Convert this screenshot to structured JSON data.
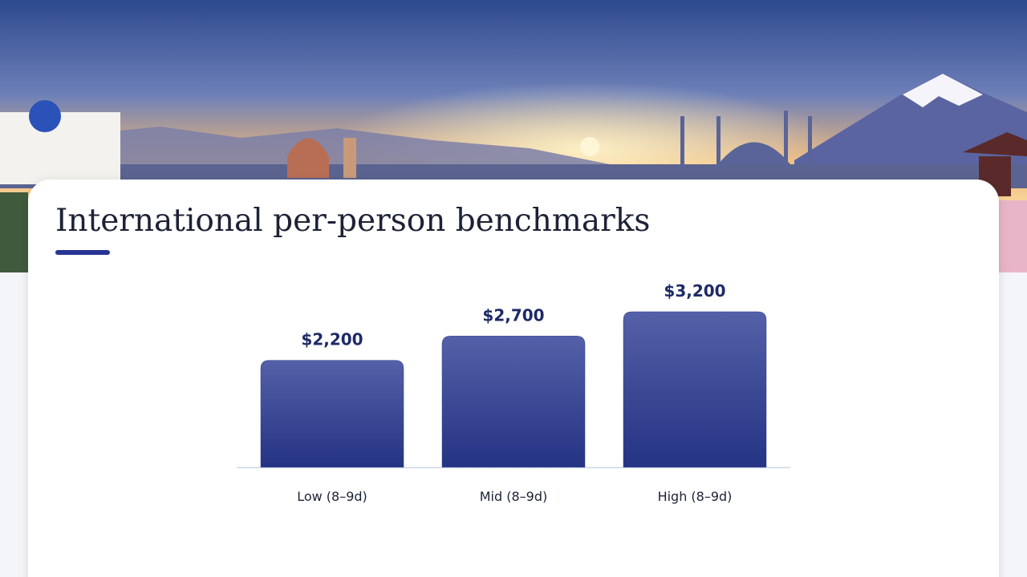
{
  "chart_data": {
    "type": "bar",
    "title": "International per-person benchmarks",
    "categories": [
      "Low (8–9d)",
      "Mid (8–9d)",
      "High (8–9d)"
    ],
    "values": [
      2200,
      2700,
      3200
    ],
    "value_labels": [
      "$2,200",
      "$2,700",
      "$3,200"
    ],
    "color": "#2e3c8c",
    "ylim": [
      0,
      3200
    ]
  }
}
